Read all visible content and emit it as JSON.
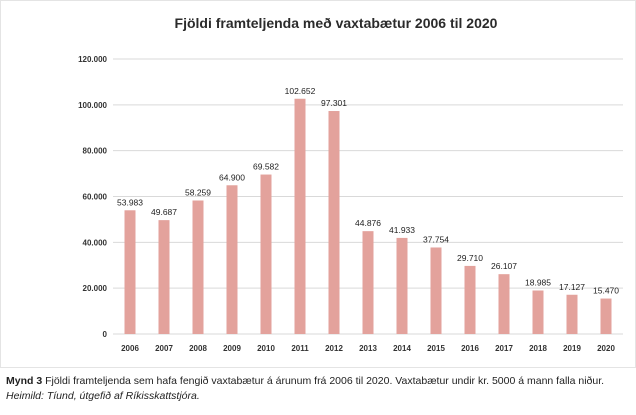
{
  "chart_data": {
    "type": "bar",
    "title": "Fjöldi framteljenda með vaxtabætur 2006 til 2020",
    "xlabel": "",
    "ylabel": "",
    "categories": [
      "2006",
      "2007",
      "2008",
      "2009",
      "2010",
      "2011",
      "2012",
      "2013",
      "2014",
      "2015",
      "2016",
      "2017",
      "2018",
      "2019",
      "2020"
    ],
    "values": [
      53983,
      49687,
      58259,
      64900,
      69582,
      102652,
      97301,
      44876,
      41933,
      37754,
      29710,
      26107,
      18985,
      17127,
      15470
    ],
    "value_labels": [
      "53.983",
      "49.687",
      "58.259",
      "64.900",
      "69.582",
      "102.652",
      "97.301",
      "44.876",
      "41.933",
      "37.754",
      "29.710",
      "26.107",
      "18.985",
      "17.127",
      "15.470"
    ],
    "y_ticks": [
      0,
      20000,
      40000,
      60000,
      80000,
      100000,
      120000
    ],
    "y_tick_labels": [
      "0",
      "20.000",
      "40.000",
      "60.000",
      "80.000",
      "100.000",
      "120.000"
    ],
    "ylim": [
      0,
      120000
    ],
    "grid": true,
    "legend": "none",
    "bar_color": "#e3a29c"
  },
  "caption": {
    "label": "Mynd 3",
    "text": " Fjöldi framteljenda sem hafa fengið vaxtabætur á árunum frá 2006 til 2020. Vaxtabætur undir kr. 5000 á mann falla niður.",
    "source": "Heimild: Tíund, útgefið af Ríkisskattstjóra."
  }
}
